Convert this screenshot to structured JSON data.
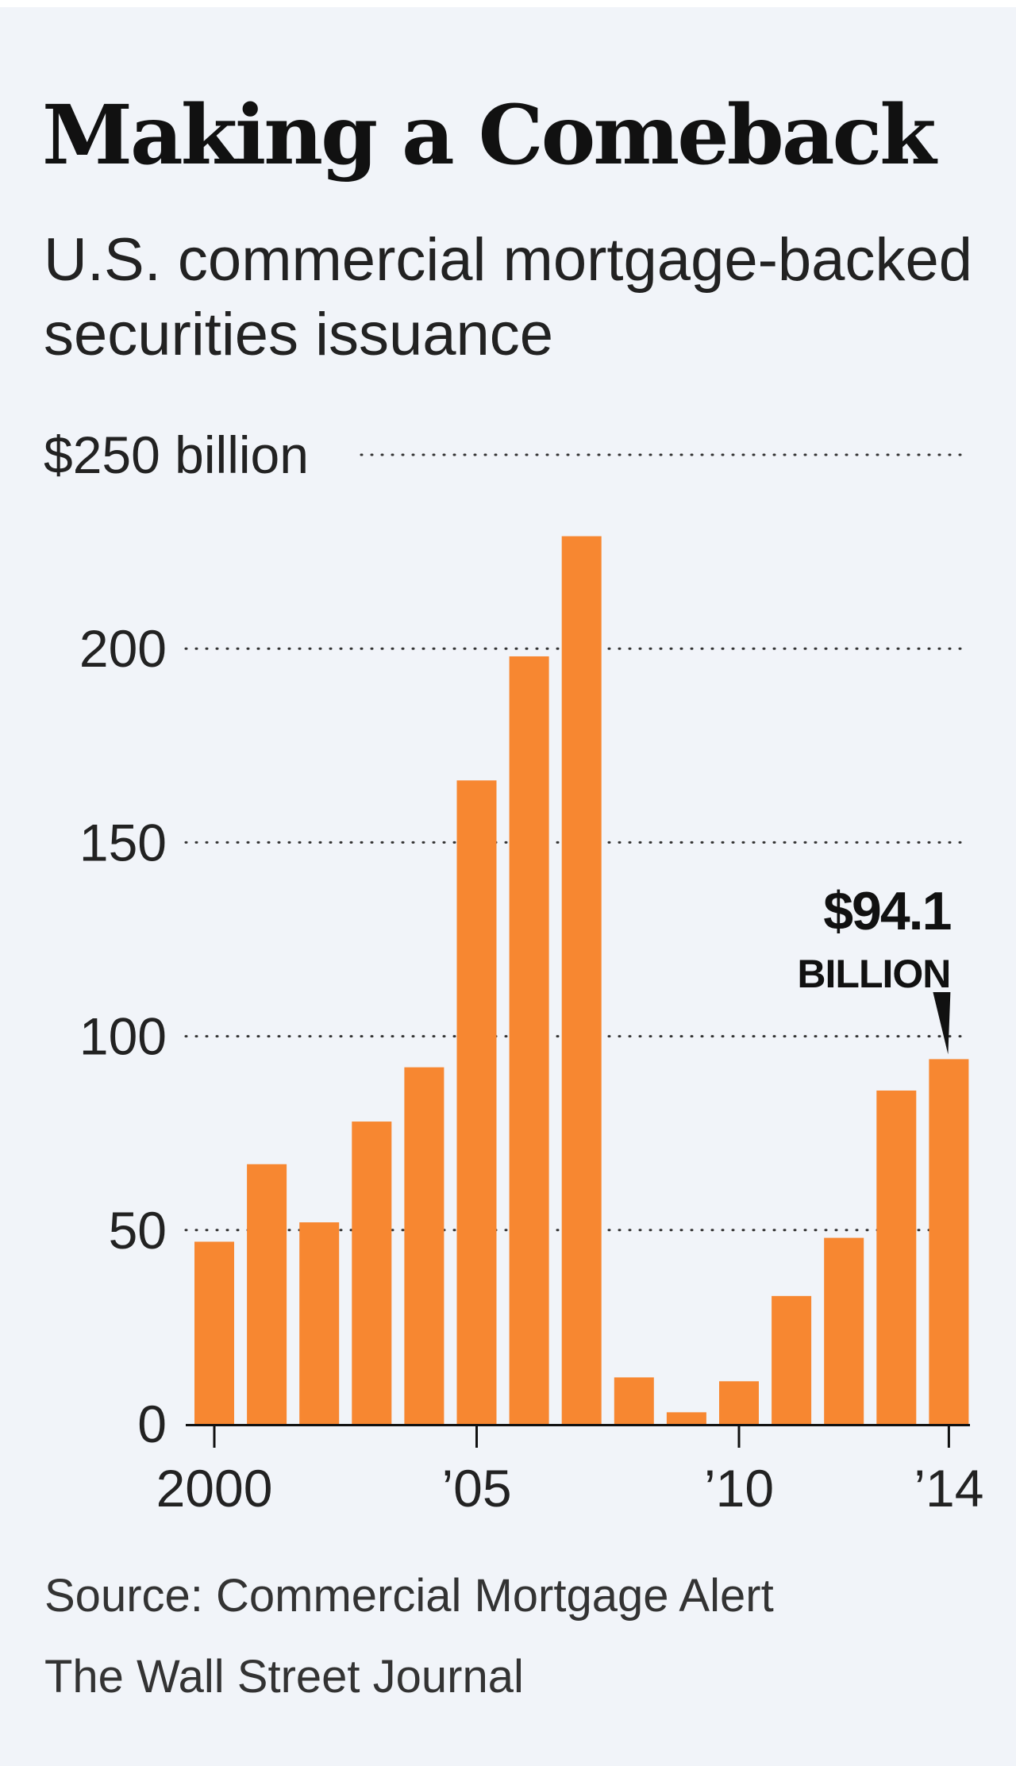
{
  "title": "Making a Comeback",
  "subtitle": "U.S. commercial mortgage-backed securities issuance",
  "source": "Source: Commercial Mortgage Alert",
  "credit": "The Wall Street Journal",
  "colors": {
    "bar": "#f78731",
    "background": "#f1f4f9",
    "text": "#222222"
  },
  "chart_data": {
    "type": "bar",
    "title": "Making a Comeback",
    "subtitle": "U.S. commercial mortgage-backed securities issuance",
    "categories": [
      "2000",
      "2001",
      "2002",
      "2003",
      "2004",
      "2005",
      "2006",
      "2007",
      "2008",
      "2009",
      "2010",
      "2011",
      "2012",
      "2013",
      "2014"
    ],
    "x_tick_labels": [
      {
        "category": "2000",
        "label": "2000"
      },
      {
        "category": "2005",
        "label": "’05"
      },
      {
        "category": "2010",
        "label": "’10"
      },
      {
        "category": "2014",
        "label": "’14"
      }
    ],
    "values": [
      47,
      67,
      52,
      78,
      92,
      166,
      198,
      229,
      12,
      3,
      11,
      33,
      48,
      86,
      94.1
    ],
    "ylim": [
      0,
      250
    ],
    "y_ticks": [
      {
        "value": 0,
        "label": "0"
      },
      {
        "value": 50,
        "label": "50"
      },
      {
        "value": 100,
        "label": "100"
      },
      {
        "value": 150,
        "label": "150"
      },
      {
        "value": 200,
        "label": "200"
      },
      {
        "value": 250,
        "label": "$250 billion"
      }
    ],
    "grid": "dotted horizontal",
    "annotation": {
      "category": "2014",
      "value": 94.1,
      "line1": "$94.1",
      "line2": "BILLION"
    }
  }
}
